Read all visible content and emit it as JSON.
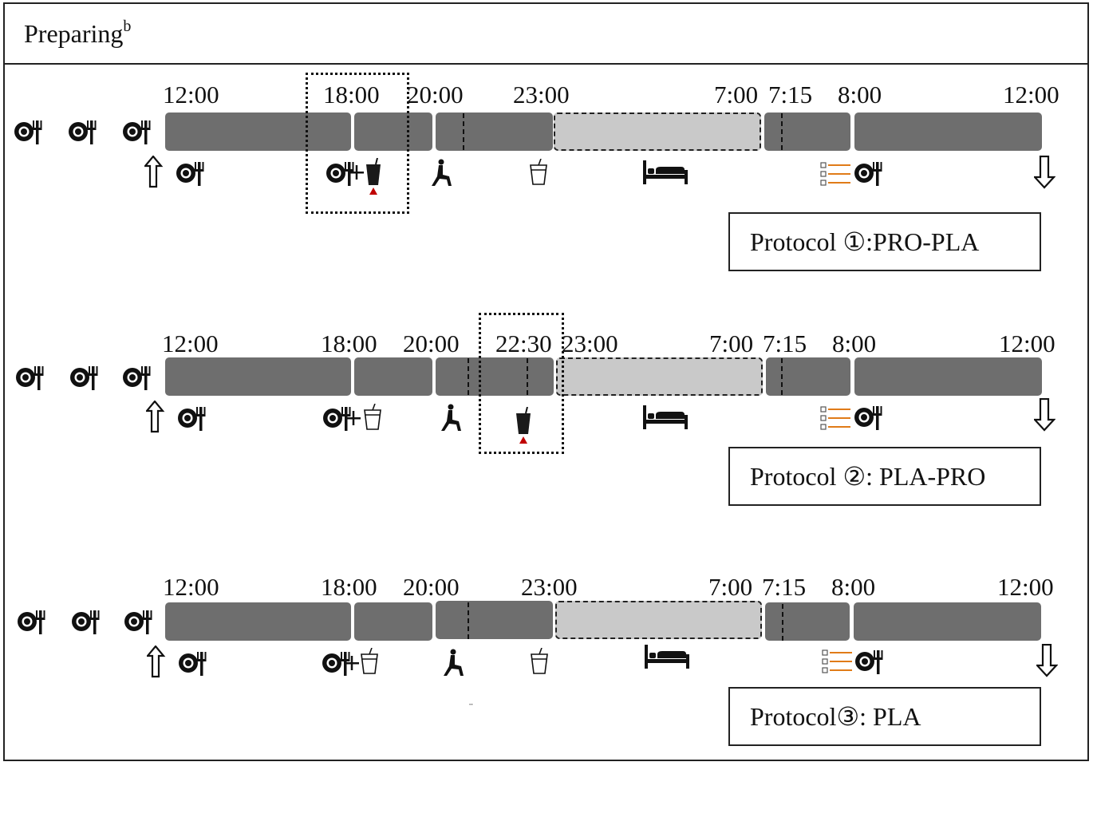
{
  "header": {
    "title": "Preparing",
    "superscript": "b"
  },
  "protocols": [
    {
      "label": "Protocol ①:PRO-PLA",
      "times": [
        "12:00",
        "18:00",
        "20:00",
        "23:00",
        "7:00",
        "7:15",
        "8:00",
        "12:00"
      ],
      "icons": [
        "arrow-up-icon",
        "meal-icon",
        "meal-plus-protein-drink-icon",
        "exercise-icon",
        "placebo-drink-icon",
        "sleep-bed-icon",
        "questionnaire-meal-icon",
        "arrow-down-icon"
      ]
    },
    {
      "label": "Protocol ②: PLA-PRO",
      "times": [
        "12:00",
        "18:00",
        "20:00",
        "22:30",
        "23:00",
        "7:00",
        "7:15",
        "8:00",
        "12:00"
      ],
      "icons": [
        "arrow-up-icon",
        "meal-icon",
        "meal-plus-placebo-drink-icon",
        "exercise-icon",
        "protein-drink-icon",
        "sleep-bed-icon",
        "questionnaire-meal-icon",
        "arrow-down-icon"
      ]
    },
    {
      "label": "Protocol③: PLA",
      "times": [
        "12:00",
        "18:00",
        "20:00",
        "23:00",
        "7:00",
        "7:15",
        "8:00",
        "12:00"
      ],
      "icons": [
        "arrow-up-icon",
        "meal-icon",
        "meal-plus-placebo-drink-icon",
        "exercise-icon",
        "placebo-drink-icon",
        "sleep-bed-icon",
        "questionnaire-meal-icon",
        "arrow-down-icon"
      ]
    }
  ],
  "stray_mark": "¨",
  "colors": {
    "bar": "#6e6e6e",
    "sleep_bar": "#c9c9c9",
    "protein_marker": "#c00000",
    "questionnaire_lines": "#e07b18"
  }
}
